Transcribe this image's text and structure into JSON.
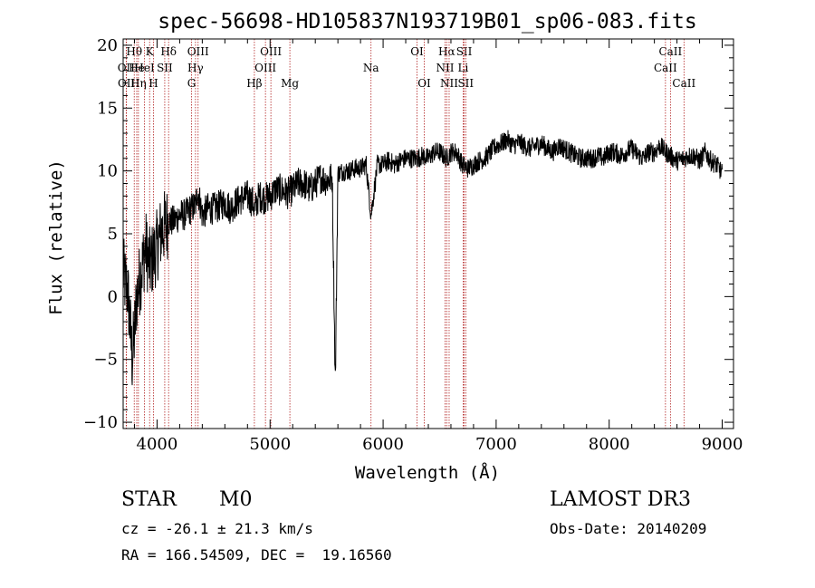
{
  "chart_data": {
    "type": "line",
    "title": "spec-56698-HD105837N193719B01_sp06-083.fits",
    "xlabel": "Wavelength (Å)",
    "ylabel": "Flux (relative)",
    "xlim": [
      3700,
      9100
    ],
    "ylim": [
      -10.5,
      20.5
    ],
    "x_ticks": [
      4000,
      5000,
      6000,
      7000,
      8000,
      9000
    ],
    "y_ticks": [
      -10,
      -5,
      0,
      5,
      10,
      15,
      20
    ],
    "x_minor_step": 200,
    "y_minor_step": 1,
    "series": [
      {
        "name": "spectrum",
        "x": [
          3700,
          3720,
          3740,
          3760,
          3780,
          3800,
          3820,
          3840,
          3860,
          3880,
          3900,
          3920,
          3940,
          3960,
          3980,
          4000,
          4030,
          4060,
          4100,
          4150,
          4200,
          4250,
          4300,
          4340,
          4360,
          4400,
          4450,
          4500,
          4550,
          4600,
          4650,
          4700,
          4750,
          4800,
          4850,
          4861,
          4900,
          4950,
          5000,
          5050,
          5100,
          5150,
          5200,
          5250,
          5300,
          5350,
          5400,
          5450,
          5500,
          5550,
          5577,
          5600,
          5650,
          5700,
          5750,
          5800,
          5850,
          5893,
          5950,
          6000,
          6050,
          6100,
          6150,
          6200,
          6250,
          6300,
          6350,
          6400,
          6450,
          6500,
          6563,
          6600,
          6650,
          6700,
          6750,
          6800,
          6850,
          6900,
          6950,
          7000,
          7050,
          7100,
          7150,
          7200,
          7250,
          7300,
          7350,
          7400,
          7450,
          7500,
          7550,
          7600,
          7650,
          7700,
          7750,
          7800,
          7850,
          7900,
          7950,
          8000,
          8050,
          8100,
          8150,
          8200,
          8250,
          8300,
          8350,
          8400,
          8450,
          8500,
          8542,
          8600,
          8662,
          8700,
          8750,
          8800,
          8850,
          8900,
          8950,
          9000
        ],
        "y": [
          2,
          1,
          0.5,
          -2,
          -5,
          -3,
          0,
          1,
          2,
          3,
          4,
          3,
          2.5,
          3,
          3.5,
          4,
          5,
          5.5,
          6,
          6,
          6.5,
          6.5,
          7,
          7.2,
          8.5,
          6.5,
          7,
          7,
          7.2,
          7.5,
          7,
          7.5,
          7.8,
          8,
          7.5,
          6.8,
          8,
          7.8,
          8,
          8.5,
          8.5,
          8.2,
          8.5,
          9,
          9,
          8.5,
          9,
          9.5,
          9.2,
          9.5,
          -7,
          9.8,
          10,
          10,
          10.2,
          10.2,
          10.5,
          6.5,
          10.5,
          10.5,
          10.8,
          10.5,
          10.8,
          11,
          11,
          11,
          11.2,
          11,
          11.5,
          11.5,
          11,
          11.5,
          11.5,
          10.5,
          10.2,
          10.5,
          10.8,
          11,
          11.5,
          12,
          12.2,
          12.5,
          12,
          12.3,
          12,
          11.8,
          12,
          12.2,
          11.8,
          11.5,
          12,
          11.8,
          11.5,
          11.2,
          11,
          11,
          11,
          11.2,
          11,
          11.5,
          11.5,
          11.2,
          11.5,
          11.8,
          11.3,
          11,
          11.5,
          11.5,
          12,
          11.5,
          11.2,
          10.8,
          11,
          11.2,
          11.2,
          10.8,
          11.5,
          10.8,
          10.5,
          9.8
        ]
      }
    ],
    "line_markers": [
      {
        "name": "Hθ",
        "wavelength": 3798,
        "row": 0
      },
      {
        "name": "OII",
        "wavelength": 3727,
        "row": 1
      },
      {
        "name": "OII",
        "wavelength": 3729,
        "row": 2
      },
      {
        "name": "He",
        "wavelength": 3820,
        "row": 1
      },
      {
        "name": "Hη",
        "wavelength": 3835,
        "row": 2
      },
      {
        "name": "K",
        "wavelength": 3934,
        "row": 0
      },
      {
        "name": "HeI",
        "wavelength": 3889,
        "row": 1
      },
      {
        "name": "H",
        "wavelength": 3968,
        "row": 2
      },
      {
        "name": "Hδ",
        "wavelength": 4102,
        "row": 0
      },
      {
        "name": "SII",
        "wavelength": 4068,
        "row": 1
      },
      {
        "name": "OIII",
        "wavelength": 4363,
        "row": 0
      },
      {
        "name": "Hγ",
        "wavelength": 4340,
        "row": 1
      },
      {
        "name": "G",
        "wavelength": 4305,
        "row": 2
      },
      {
        "name": "Hβ",
        "wavelength": 4861,
        "row": 2
      },
      {
        "name": "OIII",
        "wavelength": 5007,
        "row": 0
      },
      {
        "name": "OIII",
        "wavelength": 4959,
        "row": 1
      },
      {
        "name": "Mg",
        "wavelength": 5175,
        "row": 2
      },
      {
        "name": "Na",
        "wavelength": 5893,
        "row": 1
      },
      {
        "name": "OI",
        "wavelength": 6300,
        "row": 0
      },
      {
        "name": "OI",
        "wavelength": 6364,
        "row": 2
      },
      {
        "name": "Hα",
        "wavelength": 6563,
        "row": 0
      },
      {
        "name": "NII",
        "wavelength": 6548,
        "row": 1
      },
      {
        "name": "NII",
        "wavelength": 6584,
        "row": 2
      },
      {
        "name": "SII",
        "wavelength": 6717,
        "row": 0
      },
      {
        "name": "Li",
        "wavelength": 6708,
        "row": 1
      },
      {
        "name": "SII",
        "wavelength": 6731,
        "row": 2
      },
      {
        "name": "CaII",
        "wavelength": 8542,
        "row": 0
      },
      {
        "name": "CaII",
        "wavelength": 8498,
        "row": 1
      },
      {
        "name": "CaII",
        "wavelength": 8662,
        "row": 2
      }
    ]
  },
  "info": {
    "object_type": "STAR",
    "subclass": "M0",
    "survey": "LAMOST DR3",
    "redshift": "cz = -26.1 ± 21.3 km/s",
    "obs_date": "Obs-Date: 20140209",
    "coords": "RA = 166.54509, DEC =  19.16560"
  },
  "colors": {
    "marker_line": "#b22222",
    "spectrum": "#000000",
    "axes": "#000000"
  }
}
